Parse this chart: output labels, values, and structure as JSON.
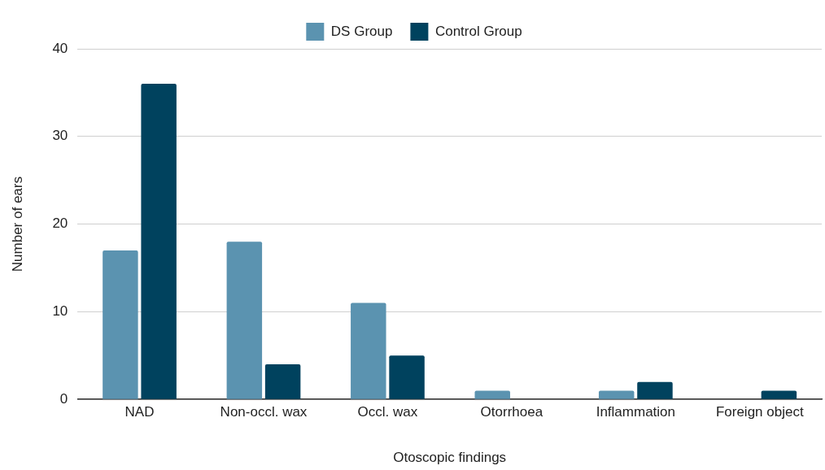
{
  "chart_data": {
    "type": "bar",
    "xlabel": "Otoscopic findings",
    "ylabel": "Number of ears",
    "categories": [
      "NAD",
      "Non-occl. wax",
      "Occl. wax",
      "Otorrhoea",
      "Inflammation",
      "Foreign object"
    ],
    "series": [
      {
        "name": "DS Group",
        "color": "#5b93b0",
        "values": [
          17,
          18,
          11,
          1,
          1,
          0
        ]
      },
      {
        "name": "Control Group",
        "color": "#00425e",
        "values": [
          36,
          4,
          5,
          0,
          2,
          1
        ]
      }
    ],
    "ylim": [
      0,
      40
    ],
    "yticks": [
      0,
      10,
      20,
      30,
      40
    ],
    "grid": "y",
    "legend": "top"
  }
}
